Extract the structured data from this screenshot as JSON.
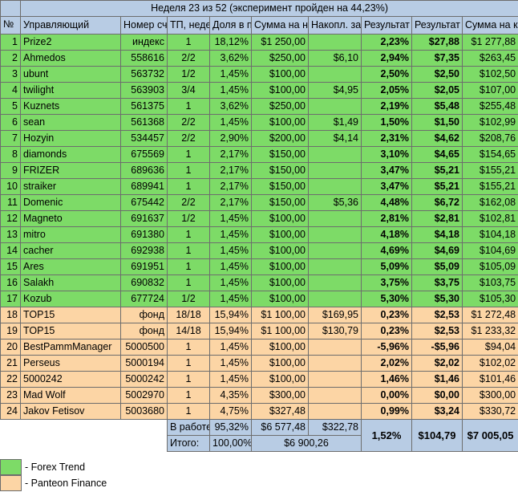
{
  "title": "Неделя 23 из 52    (эксперимент пройден на 44,23%)",
  "headers": [
    "№",
    "Управляющий",
    "Номер счета",
    "ТП, недель",
    "Доля в портф.",
    "Сумма на нач.недели",
    "Накопл. за ТП",
    "Результат недели, %",
    "Результат недели, $",
    "Сумма на кон. недели"
  ],
  "rows": [
    {
      "n": "1",
      "name": "Prize2",
      "acct": "индекс",
      "tp": "1",
      "share": "18,12%",
      "start": "$1 250,00",
      "acc": "",
      "pct": "2,23%",
      "usd": "$27,88",
      "end": "$1 277,88",
      "group": "green"
    },
    {
      "n": "2",
      "name": "Ahmedos",
      "acct": "558616",
      "tp": "2/2",
      "share": "3,62%",
      "start": "$250,00",
      "acc": "$6,10",
      "pct": "2,94%",
      "usd": "$7,35",
      "end": "$263,45",
      "group": "green"
    },
    {
      "n": "3",
      "name": "ubunt",
      "acct": "563732",
      "tp": "1/2",
      "share": "1,45%",
      "start": "$100,00",
      "acc": "",
      "pct": "2,50%",
      "usd": "$2,50",
      "end": "$102,50",
      "group": "green"
    },
    {
      "n": "4",
      "name": "twilight",
      "acct": "563903",
      "tp": "3/4",
      "share": "1,45%",
      "start": "$100,00",
      "acc": "$4,95",
      "pct": "2,05%",
      "usd": "$2,05",
      "end": "$107,00",
      "group": "green"
    },
    {
      "n": "5",
      "name": "Kuznets",
      "acct": "561375",
      "tp": "1",
      "share": "3,62%",
      "start": "$250,00",
      "acc": "",
      "pct": "2,19%",
      "usd": "$5,48",
      "end": "$255,48",
      "group": "green"
    },
    {
      "n": "6",
      "name": "sean",
      "acct": "561368",
      "tp": "2/2",
      "share": "1,45%",
      "start": "$100,00",
      "acc": "$1,49",
      "pct": "1,50%",
      "usd": "$1,50",
      "end": "$102,99",
      "group": "green"
    },
    {
      "n": "7",
      "name": "Hozyin",
      "acct": "534457",
      "tp": "2/2",
      "share": "2,90%",
      "start": "$200,00",
      "acc": "$4,14",
      "pct": "2,31%",
      "usd": "$4,62",
      "end": "$208,76",
      "group": "green"
    },
    {
      "n": "8",
      "name": "diamonds",
      "acct": "675569",
      "tp": "1",
      "share": "2,17%",
      "start": "$150,00",
      "acc": "",
      "pct": "3,10%",
      "usd": "$4,65",
      "end": "$154,65",
      "group": "green"
    },
    {
      "n": "9",
      "name": "FRIZER",
      "acct": "689636",
      "tp": "1",
      "share": "2,17%",
      "start": "$150,00",
      "acc": "",
      "pct": "3,47%",
      "usd": "$5,21",
      "end": "$155,21",
      "group": "green"
    },
    {
      "n": "10",
      "name": "straiker",
      "acct": "689941",
      "tp": "1",
      "share": "2,17%",
      "start": "$150,00",
      "acc": "",
      "pct": "3,47%",
      "usd": "$5,21",
      "end": "$155,21",
      "group": "green"
    },
    {
      "n": "11",
      "name": "Domenic",
      "acct": "675442",
      "tp": "2/2",
      "share": "2,17%",
      "start": "$150,00",
      "acc": "$5,36",
      "pct": "4,48%",
      "usd": "$6,72",
      "end": "$162,08",
      "group": "green"
    },
    {
      "n": "12",
      "name": "Magneto",
      "acct": "691637",
      "tp": "1/2",
      "share": "1,45%",
      "start": "$100,00",
      "acc": "",
      "pct": "2,81%",
      "usd": "$2,81",
      "end": "$102,81",
      "group": "green"
    },
    {
      "n": "13",
      "name": "mitro",
      "acct": "691380",
      "tp": "1",
      "share": "1,45%",
      "start": "$100,00",
      "acc": "",
      "pct": "4,18%",
      "usd": "$4,18",
      "end": "$104,18",
      "group": "green"
    },
    {
      "n": "14",
      "name": "cacher",
      "acct": "692938",
      "tp": "1",
      "share": "1,45%",
      "start": "$100,00",
      "acc": "",
      "pct": "4,69%",
      "usd": "$4,69",
      "end": "$104,69",
      "group": "green"
    },
    {
      "n": "15",
      "name": "Ares",
      "acct": "691951",
      "tp": "1",
      "share": "1,45%",
      "start": "$100,00",
      "acc": "",
      "pct": "5,09%",
      "usd": "$5,09",
      "end": "$105,09",
      "group": "green"
    },
    {
      "n": "16",
      "name": "Salakh",
      "acct": "690832",
      "tp": "1",
      "share": "1,45%",
      "start": "$100,00",
      "acc": "",
      "pct": "3,75%",
      "usd": "$3,75",
      "end": "$103,75",
      "group": "green"
    },
    {
      "n": "17",
      "name": "Kozub",
      "acct": "677724",
      "tp": "1/2",
      "share": "1,45%",
      "start": "$100,00",
      "acc": "",
      "pct": "5,30%",
      "usd": "$5,30",
      "end": "$105,30",
      "group": "green"
    },
    {
      "n": "18",
      "name": "TOP15",
      "acct": "фонд",
      "tp": "18/18",
      "share": "15,94%",
      "start": "$1 100,00",
      "acc": "$169,95",
      "pct": "0,23%",
      "usd": "$2,53",
      "end": "$1 272,48",
      "group": "orange"
    },
    {
      "n": "19",
      "name": "TOP15",
      "acct": "фонд",
      "tp": "14/18",
      "share": "15,94%",
      "start": "$1 100,00",
      "acc": "$130,79",
      "pct": "0,23%",
      "usd": "$2,53",
      "end": "$1 233,32",
      "group": "orange"
    },
    {
      "n": "20",
      "name": "BestPammManager",
      "acct": "5000500",
      "tp": "1",
      "share": "1,45%",
      "start": "$100,00",
      "acc": "",
      "pct": "-5,96%",
      "usd": "-$5,96",
      "end": "$94,04",
      "group": "orange"
    },
    {
      "n": "21",
      "name": "Perseus",
      "acct": "5000194",
      "tp": "1",
      "share": "1,45%",
      "start": "$100,00",
      "acc": "",
      "pct": "2,02%",
      "usd": "$2,02",
      "end": "$102,02",
      "group": "orange"
    },
    {
      "n": "22",
      "name": "5000242",
      "acct": "5000242",
      "tp": "1",
      "share": "1,45%",
      "start": "$100,00",
      "acc": "",
      "pct": "1,46%",
      "usd": "$1,46",
      "end": "$101,46",
      "group": "orange"
    },
    {
      "n": "23",
      "name": "Mad Wolf",
      "acct": "5002970",
      "tp": "1",
      "share": "4,35%",
      "start": "$300,00",
      "acc": "",
      "pct": "0,00%",
      "usd": "$0,00",
      "end": "$300,00",
      "group": "orange"
    },
    {
      "n": "24",
      "name": "Jakov Fetisov",
      "acct": "5003680",
      "tp": "1",
      "share": "4,75%",
      "start": "$327,48",
      "acc": "",
      "pct": "0,99%",
      "usd": "$3,24",
      "end": "$330,72",
      "group": "orange"
    }
  ],
  "footer": {
    "working_label": "В работе:",
    "working_share": "95,32%",
    "working_sum": "$6 577,48",
    "working_acc": "$322,78",
    "total_label": "Итого:",
    "total_share": "100,00%",
    "total_sum": "$6 900,26",
    "week_pct": "1,52%",
    "week_usd": "$104,79",
    "week_end": "$7 005,05"
  },
  "legend": [
    {
      "label": "- Forex Trend",
      "color": "#7ddb67"
    },
    {
      "label": "- Panteon Finance",
      "color": "#fcd5a5"
    }
  ]
}
